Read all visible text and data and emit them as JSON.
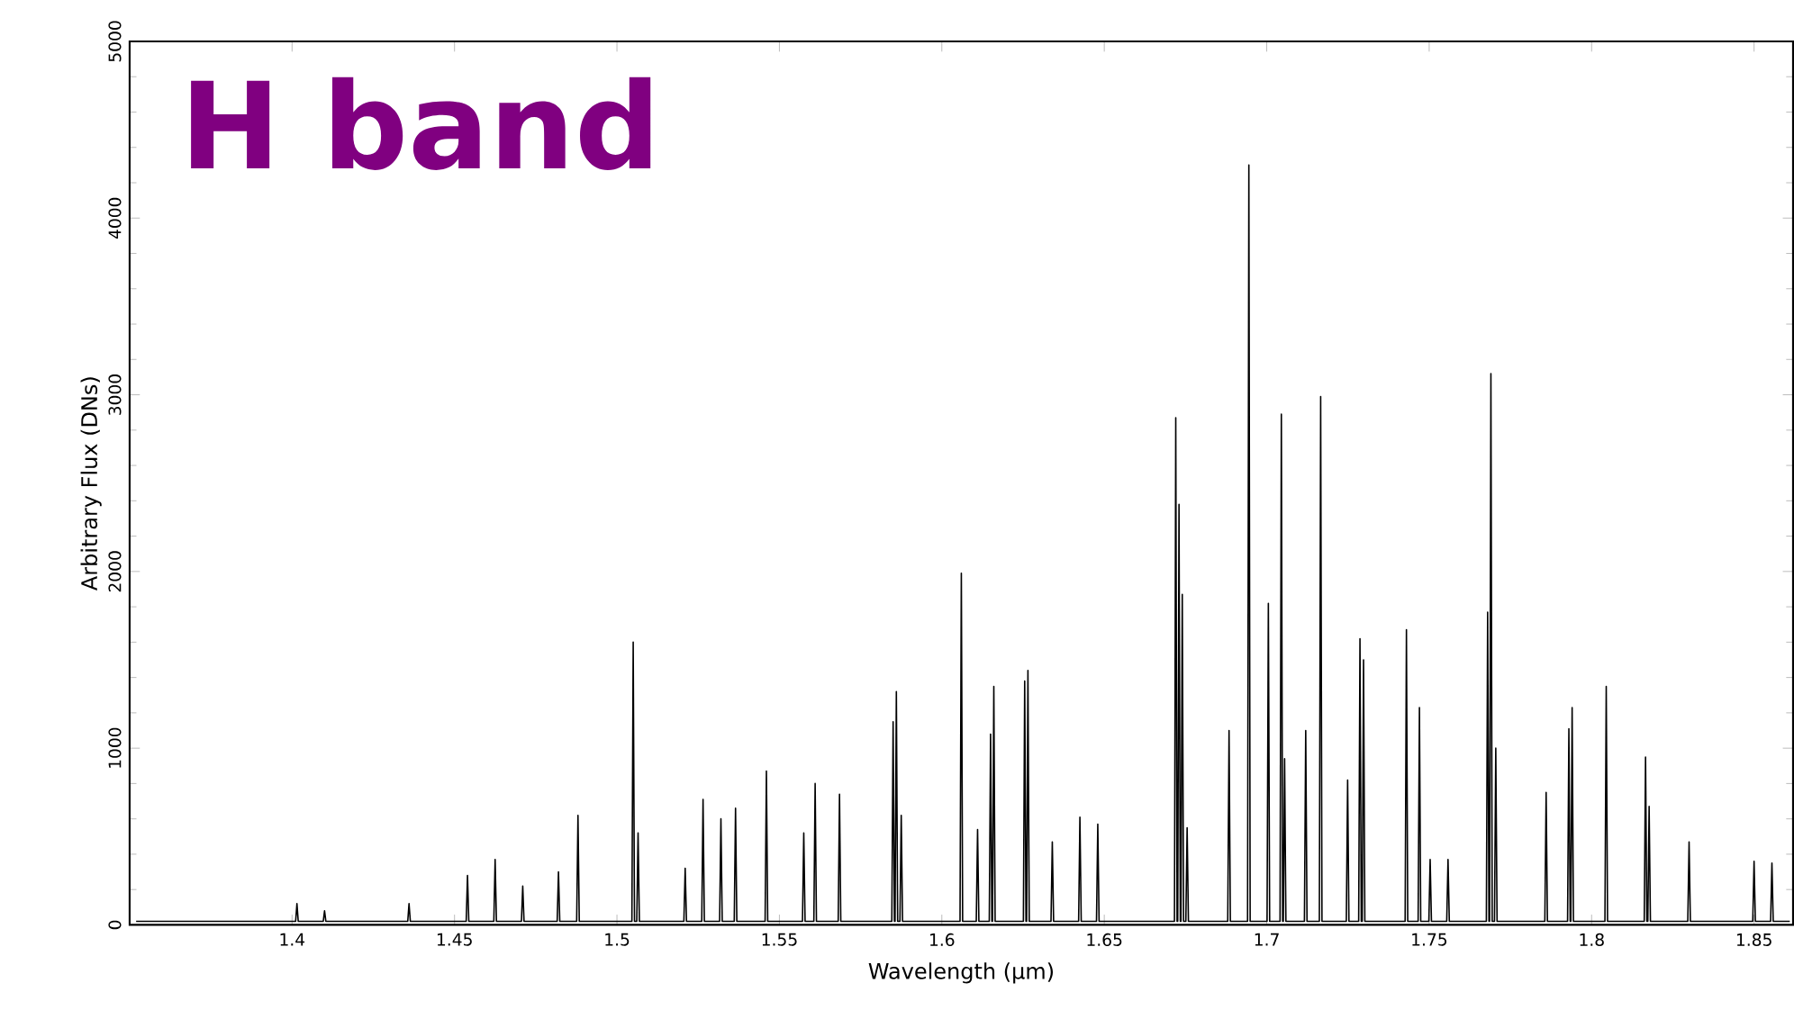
{
  "chart_data": {
    "type": "line",
    "title": "H band",
    "xlabel": "Wavelength (μm)",
    "ylabel": "Arbitrary Flux (DNs)",
    "xlim": [
      1.35,
      1.862
    ],
    "ylim": [
      0,
      5000
    ],
    "xticks": [
      1.4,
      1.45,
      1.5,
      1.55,
      1.6,
      1.65,
      1.7,
      1.75,
      1.8,
      1.85
    ],
    "yticks": [
      0,
      1000,
      2000,
      3000,
      4000,
      5000
    ],
    "grid": false,
    "marker": "none",
    "line_style": "solid",
    "series": [
      {
        "color": "#000000",
        "x": [
          1.352,
          1.4011,
          1.4015,
          1.4019,
          1.4096,
          1.41,
          1.4104,
          1.4356,
          1.436,
          1.4364,
          1.4536,
          1.454,
          1.4544,
          1.4621,
          1.4625,
          1.4629,
          1.4706,
          1.471,
          1.4714,
          1.4816,
          1.482,
          1.4824,
          1.4876,
          1.488,
          1.4884,
          1.5046,
          1.505,
          1.5054,
          1.5061,
          1.5065,
          1.5069,
          1.5206,
          1.521,
          1.5214,
          1.5261,
          1.5265,
          1.5269,
          1.5316,
          1.532,
          1.5324,
          1.5361,
          1.5365,
          1.5369,
          1.5456,
          1.546,
          1.5464,
          1.5571,
          1.5575,
          1.5579,
          1.5606,
          1.561,
          1.5614,
          1.5681,
          1.5685,
          1.5689,
          1.5846,
          1.585,
          1.5854,
          1.5856,
          1.586,
          1.5864,
          1.5871,
          1.5875,
          1.5879,
          1.6056,
          1.606,
          1.6064,
          1.6106,
          1.611,
          1.6114,
          1.6146,
          1.615,
          1.6154,
          1.6156,
          1.616,
          1.6164,
          1.6251,
          1.6255,
          1.6259,
          1.6261,
          1.6265,
          1.6269,
          1.6336,
          1.634,
          1.6344,
          1.6421,
          1.6425,
          1.6429,
          1.6476,
          1.648,
          1.6484,
          1.6716,
          1.672,
          1.6724,
          1.6726,
          1.673,
          1.6734,
          1.6736,
          1.674,
          1.6744,
          1.6751,
          1.6755,
          1.6759,
          1.688,
          1.6884,
          1.6888,
          1.6941,
          1.6945,
          1.6949,
          1.7001,
          1.7005,
          1.7009,
          1.7041,
          1.7045,
          1.7049,
          1.7051,
          1.7055,
          1.7059,
          1.7116,
          1.712,
          1.7124,
          1.7162,
          1.7166,
          1.717,
          1.7245,
          1.7249,
          1.7253,
          1.7283,
          1.7287,
          1.7291,
          1.7294,
          1.7298,
          1.7302,
          1.7426,
          1.743,
          1.7434,
          1.7466,
          1.747,
          1.7474,
          1.7499,
          1.7503,
          1.7507,
          1.7554,
          1.7558,
          1.7562,
          1.7676,
          1.768,
          1.7684,
          1.7686,
          1.769,
          1.7694,
          1.7701,
          1.7705,
          1.7709,
          1.7856,
          1.786,
          1.7864,
          1.7926,
          1.793,
          1.7934,
          1.7936,
          1.794,
          1.7944,
          1.8041,
          1.8045,
          1.8049,
          1.8162,
          1.8166,
          1.817,
          1.8173,
          1.8177,
          1.8181,
          1.8296,
          1.83,
          1.8304,
          1.8496,
          1.85,
          1.8504,
          1.8551,
          1.8555,
          1.8559,
          1.861
        ],
        "values": [
          20,
          20,
          120,
          20,
          20,
          80,
          20,
          20,
          120,
          20,
          20,
          280,
          20,
          20,
          370,
          20,
          20,
          220,
          20,
          20,
          300,
          20,
          20,
          620,
          20,
          20,
          1600,
          20,
          20,
          520,
          20,
          20,
          320,
          20,
          20,
          710,
          20,
          20,
          600,
          20,
          20,
          660,
          20,
          20,
          870,
          20,
          20,
          520,
          20,
          20,
          800,
          20,
          20,
          740,
          20,
          20,
          1150,
          20,
          20,
          1320,
          20,
          20,
          620,
          20,
          20,
          1990,
          20,
          20,
          540,
          20,
          20,
          1080,
          20,
          20,
          1350,
          20,
          20,
          1380,
          20,
          20,
          1440,
          20,
          20,
          470,
          20,
          20,
          610,
          20,
          20,
          570,
          20,
          20,
          2870,
          20,
          20,
          2380,
          20,
          20,
          1870,
          20,
          20,
          550,
          20,
          20,
          1100,
          20,
          20,
          4300,
          20,
          20,
          1820,
          20,
          20,
          2890,
          20,
          20,
          940,
          20,
          20,
          1100,
          20,
          20,
          2990,
          20,
          20,
          820,
          20,
          20,
          1620,
          20,
          20,
          1500,
          20,
          20,
          1670,
          20,
          20,
          1230,
          20,
          20,
          370,
          20,
          20,
          370,
          20,
          20,
          1770,
          20,
          20,
          3120,
          20,
          20,
          1000,
          20,
          20,
          750,
          20,
          20,
          1110,
          20,
          20,
          1230,
          20,
          20,
          1350,
          20,
          20,
          950,
          20,
          20,
          670,
          20,
          20,
          470,
          20,
          20,
          360,
          20,
          20,
          350,
          20,
          20
        ]
      }
    ]
  }
}
